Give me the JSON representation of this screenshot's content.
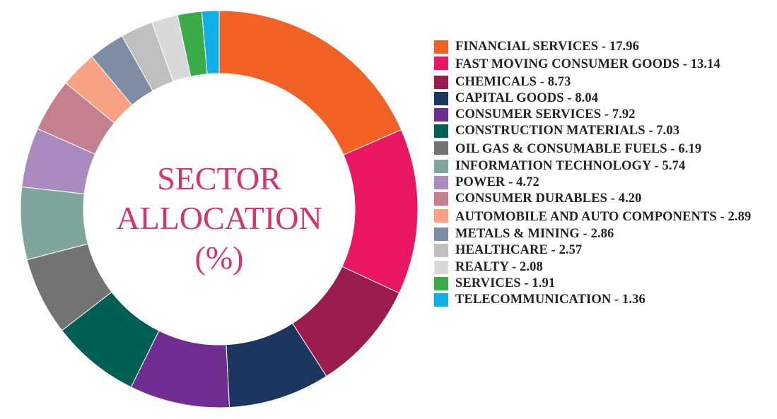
{
  "chart_data": {
    "type": "pie",
    "subtype": "donut",
    "title": "SECTOR ALLOCATION (%)",
    "title_lines": [
      "SECTOR",
      "ALLOCATION",
      "(%)"
    ],
    "title_color": "#d8336b",
    "legend_position": "right",
    "slices": [
      {
        "label": "FINANCIAL SERVICES",
        "value": 17.96,
        "value_text": "17.96",
        "color": "#f26124"
      },
      {
        "label": "FAST MOVING CONSUMER GOODS",
        "value": 13.14,
        "value_text": "13.14",
        "color": "#ea1662"
      },
      {
        "label": "CHEMICALS",
        "value": 8.73,
        "value_text": "8.73",
        "color": "#9a1c4e"
      },
      {
        "label": "CAPITAL GOODS",
        "value": 8.04,
        "value_text": "8.04",
        "color": "#1b365f"
      },
      {
        "label": "CONSUMER SERVICES",
        "value": 7.92,
        "value_text": "7.92",
        "color": "#6f2c91"
      },
      {
        "label": "CONSTRUCTION MATERIALS",
        "value": 7.03,
        "value_text": "7.03",
        "color": "#005f53"
      },
      {
        "label": "OIL GAS & CONSUMABLE FUELS",
        "value": 6.19,
        "value_text": "6.19",
        "color": "#737373"
      },
      {
        "label": "INFORMATION TECHNOLOGY",
        "value": 5.74,
        "value_text": "5.74",
        "color": "#7fa69a"
      },
      {
        "label": "POWER",
        "value": 4.72,
        "value_text": "4.72",
        "color": "#a98bc0"
      },
      {
        "label": "CONSUMER DURABLES",
        "value": 4.2,
        "value_text": "4.20",
        "color": "#c4808f"
      },
      {
        "label": "AUTOMOBILE AND AUTO COMPONENTS",
        "value": 2.89,
        "value_text": "2.89",
        "color": "#f7a283"
      },
      {
        "label": "METALS & MINING",
        "value": 2.86,
        "value_text": "2.86",
        "color": "#7e8da3"
      },
      {
        "label": "HEALTHCARE",
        "value": 2.57,
        "value_text": "2.57",
        "color": "#bfbfbf"
      },
      {
        "label": "REALTY",
        "value": 2.08,
        "value_text": "2.08",
        "color": "#d9d9d9"
      },
      {
        "label": "SERVICES",
        "value": 1.91,
        "value_text": "1.91",
        "color": "#3aac4a"
      },
      {
        "label": "TELECOMMUNICATION",
        "value": 1.36,
        "value_text": "1.36",
        "color": "#0fb0ea"
      }
    ]
  }
}
